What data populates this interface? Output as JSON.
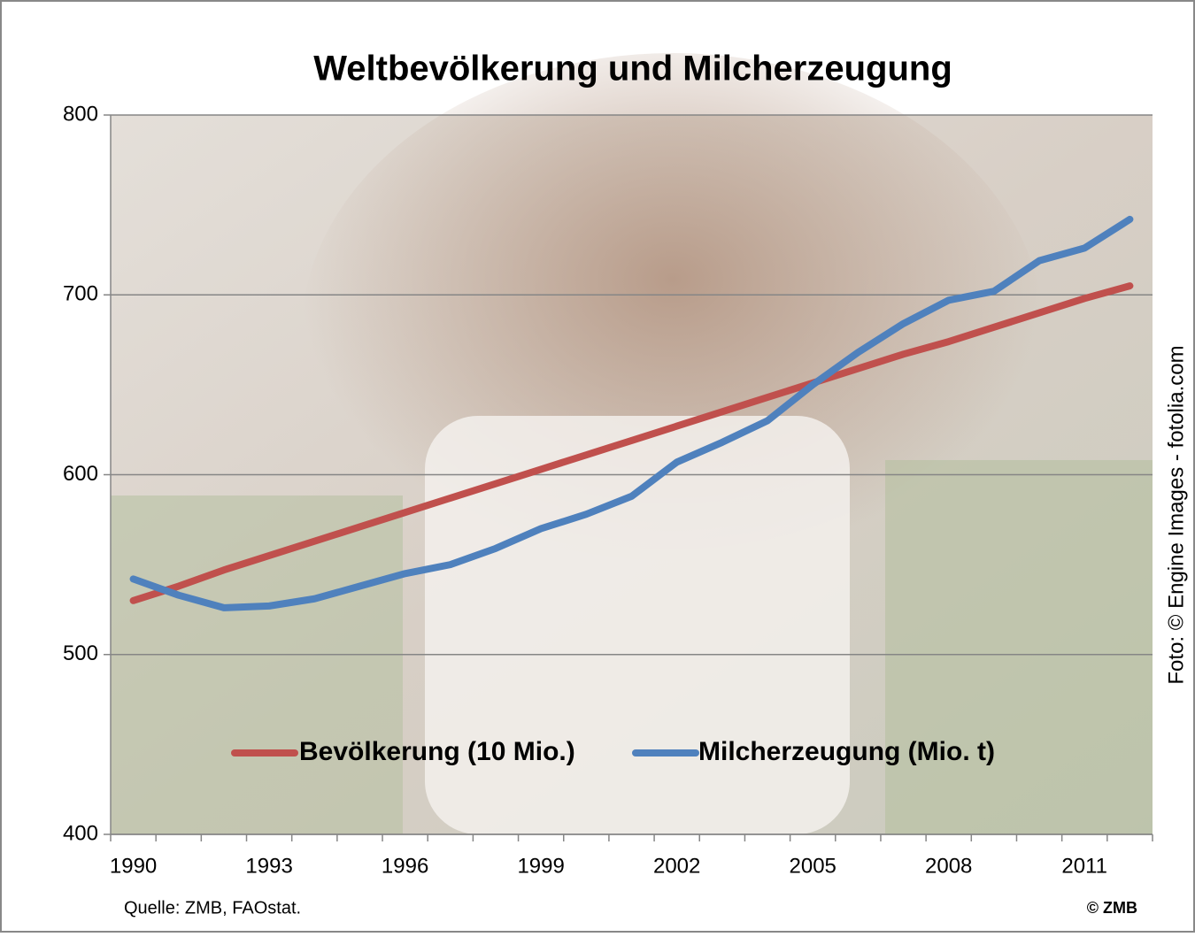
{
  "chart_data": {
    "type": "line",
    "title": "Weltbevölkerung und Milcherzeugung",
    "x": [
      1990,
      1991,
      1992,
      1993,
      1994,
      1995,
      1996,
      1997,
      1998,
      1999,
      2000,
      2001,
      2002,
      2003,
      2004,
      2005,
      2006,
      2007,
      2008,
      2009,
      2010,
      2011,
      2012
    ],
    "xlim": [
      1989.5,
      2012.5
    ],
    "xticks": [
      1990,
      1993,
      1996,
      1999,
      2002,
      2005,
      2008,
      2011
    ],
    "ylim": [
      400,
      800
    ],
    "yticks": [
      400,
      500,
      600,
      700,
      800
    ],
    "grid": true,
    "legend": "bottom",
    "series": [
      {
        "name": "Bevölkerung (10 Mio.)",
        "color": "#c0504d",
        "values": [
          530,
          538,
          547,
          555,
          563,
          571,
          579,
          587,
          595,
          603,
          611,
          619,
          627,
          635,
          643,
          651,
          659,
          667,
          674,
          682,
          690,
          698,
          705
        ]
      },
      {
        "name": "Milcherzeugung (Mio. t)",
        "color": "#4f81bd",
        "values": [
          542,
          533,
          526,
          527,
          531,
          538,
          545,
          550,
          559,
          570,
          578,
          588,
          607,
          618,
          630,
          650,
          668,
          684,
          697,
          702,
          719,
          726,
          742
        ]
      }
    ],
    "source": "Quelle: ZMB, FAOstat.",
    "copyright": "© ZMB",
    "photo_credit": "Foto: © Engine Images - fotolia.com"
  }
}
